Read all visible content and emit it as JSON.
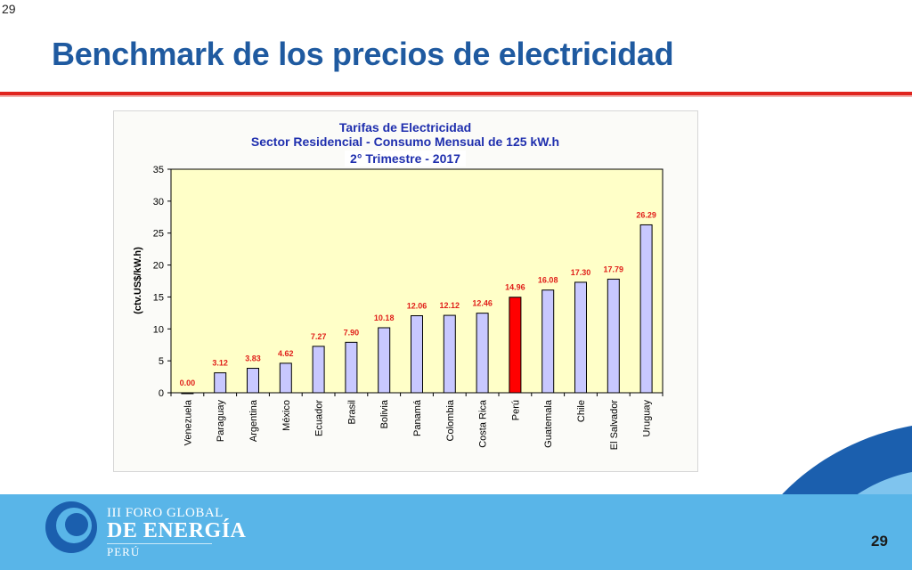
{
  "slide": {
    "corner_number": "29",
    "title": "Benchmark de los precios de electricidad",
    "page_number": "29"
  },
  "footer": {
    "brand_line1": "III FORO GLOBAL",
    "brand_line2": "DE ENERGÍA",
    "brand_line3": "PERÚ"
  },
  "colors": {
    "title": "#1f5aa0",
    "rule": "#e0241f",
    "chart_title": "#1f2fae",
    "plot_bg": "#ffffc8",
    "bar_fill": "#c8c8ff",
    "bar_highlight": "#ff0000",
    "data_label": "#e0201a",
    "footer": "#59b5e8"
  },
  "chart_data": {
    "type": "bar",
    "title": "Tarifas de Electricidad",
    "subtitle": "Sector Residencial - Consumo Mensual de 125 kW.h",
    "subtitle2": "2° Trimestre - 2017",
    "xlabel": "",
    "ylabel": "(ctv.US$/kW.h)",
    "ylim": [
      0,
      35
    ],
    "yticks": [
      0,
      5,
      10,
      15,
      20,
      25,
      30,
      35
    ],
    "grid": false,
    "legend": "none",
    "categories": [
      "Venezuela",
      "Paraguay",
      "Argentina",
      "México",
      "Ecuador",
      "Brasil",
      "Bolivia",
      "Panamá",
      "Colombia",
      "Costa Rica",
      "Perú",
      "Guatemala",
      "Chile",
      "El Salvador",
      "Uruguay"
    ],
    "values": [
      0.0,
      3.12,
      3.83,
      4.62,
      7.27,
      7.9,
      10.18,
      12.06,
      12.12,
      12.46,
      14.96,
      16.08,
      17.3,
      17.79,
      26.29
    ],
    "value_labels": [
      "0.00",
      "3.12",
      "3.83",
      "4.62",
      "7.27",
      "7.90",
      "10.18",
      "12.06",
      "12.12",
      "12.46",
      "14.96",
      "16.08",
      "17.30",
      "17.79",
      "26.29"
    ],
    "highlight": "Perú"
  }
}
